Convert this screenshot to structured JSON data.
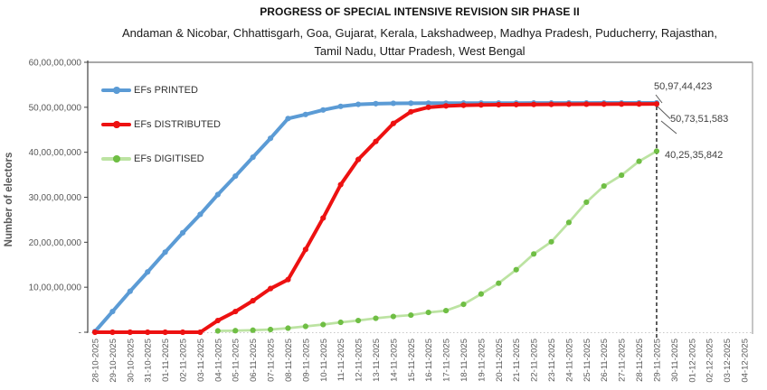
{
  "chart_data": {
    "type": "line",
    "title": "PROGRESS OF SPECIAL INTENSIVE REVISION SIR PHASE II",
    "subtitle_lines": [
      "Andaman & Nicobar, Chhattisgarh, Goa, Gujarat, Kerala, Lakshadweep, Madhya Pradesh, Puducherry, Rajasthan,",
      "Tamil Nadu, Uttar Pradesh, West Bengal"
    ],
    "ylabel": "Number of electors",
    "xlabel": "",
    "ylim": [
      0,
      600000000
    ],
    "grid": false,
    "legend_position": "top-left-inside",
    "y_tick_labels": [
      "60,00,00,000",
      "50,00,00,000",
      "40,00,00,000",
      "30,00,00,000",
      "20,00,00,000",
      "10,00,00,000",
      "-"
    ],
    "categories": [
      "28-10-2025",
      "29-10-2025",
      "30-10-2025",
      "31-10-2025",
      "01-11-2025",
      "02-11-2025",
      "03-11-2025",
      "04-11-2025",
      "05-11-2025",
      "06-11-2025",
      "07-11-2025",
      "08-11-2025",
      "09-11-2025",
      "10-11-2025",
      "11-11-2025",
      "12-11-2025",
      "13-11-2025",
      "14-11-2025",
      "15-11-2025",
      "16-11-2025",
      "17-11-2025",
      "18-11-2025",
      "19-11-2025",
      "20-11-2025",
      "21-11-2025",
      "22-11-2025",
      "23-11-2025",
      "24-11-2025",
      "25-11-2025",
      "26-11-2025",
      "27-11-2025",
      "28-11-2025",
      "29-11-2025",
      "30-11-2025",
      "01-12-2025",
      "02-12-2025",
      "03-12-2025",
      "04-12-2025"
    ],
    "series": [
      {
        "name": "EFs PRINTED",
        "color": "#5B9BD5",
        "marker_color": "#5B9BD5",
        "line_width": 4,
        "values": [
          1500000,
          46000000,
          91000000,
          134000000,
          178000000,
          221000000,
          262000000,
          306000000,
          347000000,
          389000000,
          431000000,
          475000000,
          484000000,
          494000000,
          502000000,
          506500000,
          508000000,
          508800000,
          509000000,
          509100000,
          509100000,
          509200000,
          509200000,
          509300000,
          509300000,
          509400000,
          509400000,
          509500000,
          509500000,
          509600000,
          509600000,
          509700000,
          509744423,
          null,
          null,
          null,
          null,
          null
        ]
      },
      {
        "name": "EFs DISTRIBUTED",
        "color": "#ED1111",
        "marker_color": "#ED1111",
        "line_width": 4,
        "values": [
          0,
          0,
          0,
          0,
          0,
          0,
          0,
          26000000,
          46000000,
          70000000,
          97000000,
          117000000,
          184000000,
          254000000,
          328000000,
          384000000,
          424000000,
          464000000,
          490000000,
          500000000,
          503000000,
          504500000,
          505200000,
          505700000,
          506000000,
          506300000,
          506500000,
          506700000,
          506900000,
          507000000,
          507100000,
          507200000,
          507351583,
          null,
          null,
          null,
          null,
          null
        ]
      },
      {
        "name": "EFs DIGITISED",
        "color": "#BCE3A2",
        "marker_color": "#6FBE44",
        "line_width": 2.75,
        "values": [
          null,
          null,
          null,
          null,
          null,
          null,
          null,
          3000000,
          3500000,
          4500000,
          6000000,
          9000000,
          13000000,
          17000000,
          22000000,
          26000000,
          31000000,
          35000000,
          38000000,
          44000000,
          48000000,
          62000000,
          85000000,
          109000000,
          139000000,
          174000000,
          201000000,
          244000000,
          289000000,
          325000000,
          349000000,
          380000000,
          402535842,
          null,
          null,
          null,
          null,
          null
        ]
      }
    ],
    "end_labels": [
      "50,97,44,423",
      "50,73,51,583",
      "40,25,35,842"
    ],
    "reference_line": {
      "category": "29-11-2025",
      "style": "dashed",
      "color": "#1a1a1a"
    }
  }
}
